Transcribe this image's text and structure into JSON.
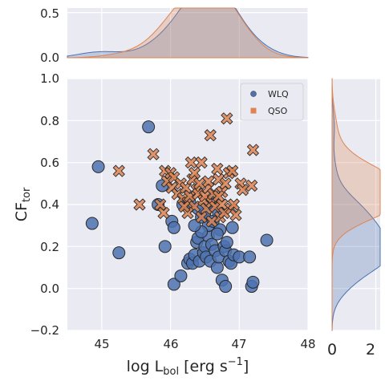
{
  "chart_data": {
    "type": "scatter",
    "xlabel": {
      "main": "log L",
      "sub": "bol",
      "rest": " [erg s",
      "sup": "−1",
      "end": "]"
    },
    "ylabel": {
      "main": "CF",
      "sub": "tor"
    },
    "xlim": [
      44.5,
      48
    ],
    "ylim": [
      -0.2,
      1.0
    ],
    "xticks": [
      "45",
      "46",
      "47",
      "48"
    ],
    "yticks": [
      "−0.2",
      "0.0",
      "0.2",
      "0.4",
      "0.6",
      "0.8",
      "1.0"
    ],
    "top_marginal": {
      "ylim": [
        0,
        0.55
      ],
      "yticks": [
        "0.0",
        "0.5"
      ]
    },
    "right_marginal": {
      "xlim": [
        0,
        2.2
      ],
      "xticks": [
        "0",
        "2"
      ]
    },
    "legend_position": "upper-right",
    "grid": true,
    "series": [
      {
        "name": "WLQ",
        "marker": "circle",
        "color": "#4c72b0",
        "points": [
          [
            44.86,
            0.31
          ],
          [
            44.95,
            0.58
          ],
          [
            45.25,
            0.17
          ],
          [
            45.68,
            0.77
          ],
          [
            45.82,
            0.4
          ],
          [
            45.88,
            0.49
          ],
          [
            45.92,
            0.2
          ],
          [
            46.02,
            0.32
          ],
          [
            46.05,
            0.29
          ],
          [
            46.05,
            0.02
          ],
          [
            46.18,
            0.4
          ],
          [
            46.15,
            0.06
          ],
          [
            46.25,
            0.12
          ],
          [
            46.28,
            0.14
          ],
          [
            46.32,
            0.12
          ],
          [
            46.35,
            0.16
          ],
          [
            46.38,
            0.22
          ],
          [
            46.4,
            0.24
          ],
          [
            46.42,
            0.13
          ],
          [
            46.45,
            0.34
          ],
          [
            46.48,
            0.17
          ],
          [
            46.5,
            0.2
          ],
          [
            46.52,
            0.15
          ],
          [
            46.55,
            0.25
          ],
          [
            46.55,
            0.3
          ],
          [
            46.58,
            0.13
          ],
          [
            46.6,
            0.21
          ],
          [
            46.62,
            0.32
          ],
          [
            46.65,
            0.18
          ],
          [
            46.68,
            0.1
          ],
          [
            46.7,
            0.15
          ],
          [
            46.72,
            0.28
          ],
          [
            46.75,
            0.04
          ],
          [
            46.78,
            0.2
          ],
          [
            46.8,
            0.18
          ],
          [
            46.82,
            0.22
          ],
          [
            46.85,
            0.13
          ],
          [
            46.88,
            0.12
          ],
          [
            46.92,
            0.16
          ],
          [
            47.0,
            0.15
          ],
          [
            46.8,
            0.01
          ],
          [
            47.18,
            0.01
          ],
          [
            47.2,
            0.03
          ],
          [
            47.15,
            0.15
          ],
          [
            47.4,
            0.23
          ],
          [
            46.5,
            0.36
          ],
          [
            46.4,
            0.38
          ],
          [
            46.62,
            0.42
          ],
          [
            46.28,
            0.41
          ],
          [
            46.7,
            0.36
          ],
          [
            46.58,
            0.4
          ],
          [
            46.45,
            0.27
          ],
          [
            46.35,
            0.3
          ],
          [
            46.68,
            0.26
          ],
          [
            46.9,
            0.29
          ]
        ]
      },
      {
        "name": "QSO",
        "marker": "cross",
        "color": "#dd8452",
        "points": [
          [
            45.25,
            0.56
          ],
          [
            45.55,
            0.4
          ],
          [
            45.75,
            0.64
          ],
          [
            45.85,
            0.4
          ],
          [
            45.9,
            0.36
          ],
          [
            45.92,
            0.56
          ],
          [
            45.95,
            0.51
          ],
          [
            46.0,
            0.55
          ],
          [
            46.02,
            0.48
          ],
          [
            46.05,
            0.53
          ],
          [
            46.1,
            0.45
          ],
          [
            46.15,
            0.5
          ],
          [
            46.18,
            0.43
          ],
          [
            46.22,
            0.48
          ],
          [
            46.25,
            0.41
          ],
          [
            46.28,
            0.44
          ],
          [
            46.3,
            0.6
          ],
          [
            46.32,
            0.52
          ],
          [
            46.35,
            0.39
          ],
          [
            46.38,
            0.47
          ],
          [
            46.4,
            0.45
          ],
          [
            46.42,
            0.5
          ],
          [
            46.45,
            0.6
          ],
          [
            46.48,
            0.42
          ],
          [
            46.5,
            0.44
          ],
          [
            46.52,
            0.38
          ],
          [
            46.55,
            0.48
          ],
          [
            46.58,
            0.73
          ],
          [
            46.6,
            0.41
          ],
          [
            46.62,
            0.45
          ],
          [
            46.65,
            0.39
          ],
          [
            46.68,
            0.57
          ],
          [
            46.7,
            0.52
          ],
          [
            46.72,
            0.34
          ],
          [
            46.75,
            0.4
          ],
          [
            46.78,
            0.36
          ],
          [
            46.8,
            0.5
          ],
          [
            46.82,
            0.81
          ],
          [
            46.85,
            0.55
          ],
          [
            46.88,
            0.38
          ],
          [
            46.9,
            0.56
          ],
          [
            46.95,
            0.35
          ],
          [
            47.02,
            0.5
          ],
          [
            47.05,
            0.47
          ],
          [
            47.18,
            0.49
          ],
          [
            47.2,
            0.66
          ],
          [
            46.25,
            0.36
          ],
          [
            46.45,
            0.34
          ],
          [
            46.6,
            0.32
          ],
          [
            46.75,
            0.46
          ],
          [
            46.35,
            0.55
          ],
          [
            46.55,
            0.51
          ],
          [
            46.2,
            0.39
          ],
          [
            46.92,
            0.4
          ],
          [
            46.7,
            0.44
          ]
        ]
      }
    ]
  }
}
